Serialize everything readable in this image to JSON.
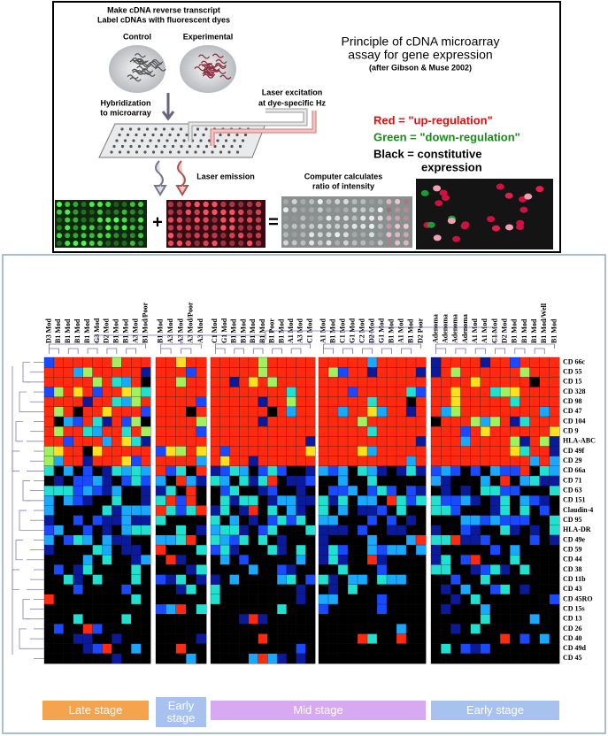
{
  "top_panel": {
    "step1_line1": "Make cDNA reverse transcript",
    "step1_line2": "Label cDNAs with fluorescent dyes",
    "control": "Control",
    "experimental": "Experimental",
    "title_line1": "Principle of cDNA microarray",
    "title_line2": "assay for gene expression",
    "citation": "(after Gibson & Muse 2002)",
    "hybridization_line1": "Hybridization",
    "hybridization_line2": "to microarray",
    "laser_line1": "Laser excitation",
    "laser_line2": "at dye-specific Hz",
    "legend_red": "Red = \"up-regulation\"",
    "legend_green": "Green = \"down-regulation\"",
    "legend_black_line1": "Black = constitutive",
    "legend_black_line2": "expression",
    "laser_emission": "Laser emission",
    "computer_line1": "Computer calculates",
    "computer_line2": "ratio of intensity",
    "plus": "+",
    "equals": "="
  },
  "heatmap": {
    "groups": [
      {
        "columns": [
          "D3 Mod",
          "B1 Mod",
          "B1 Mod",
          "B1 Mod",
          "B1 Mod",
          "G3 Mod",
          "D2 Mod",
          "B1 Mod",
          "B1 Mod",
          "A3 Mod",
          "B1 Mod/Poor"
        ]
      },
      {
        "columns": [
          "B1 Mod",
          "A3 Mod",
          "A3 Mod",
          "A3 Mod/Poor",
          "A3 Mod"
        ]
      },
      {
        "columns": [
          "C1 Mod",
          "G1 Mod",
          "B1 Mod",
          "B1 Mod",
          "B1 Mod",
          "B1 Mod",
          "B1 Poor",
          "B1 Mod",
          "A1 Mod",
          "A3 Mod",
          "C1 Mod"
        ]
      },
      {
        "columns": [
          "A1 Mod",
          "B1 Mod",
          "C1 Mod",
          "G1 Mod",
          "C2 Mod",
          "D2 Mod",
          "G1 Mod",
          "B1 Mod",
          "A1 Mod",
          "B1 Mod",
          "D2 Poor"
        ]
      },
      {
        "columns": [
          "Adenoma",
          "Adenoma",
          "Adenoma",
          "Adenoma",
          "A1 Mod",
          "A1 Mod",
          "C1 Mod",
          "D2 Mod",
          "B1 Mod",
          "B1 Mod",
          "B1 Mod",
          "B1 Mod/Well",
          "B1 Mod"
        ]
      }
    ],
    "rows": [
      "CD 66c",
      "CD 55",
      "CD 15",
      "CD 328",
      "CD 98",
      "CD 47",
      "CD 104",
      "CD 9",
      "HLA-ABC",
      "CD 49f",
      "CD 29",
      "CD 66a",
      "CD 71",
      "CD 63",
      "CD 151",
      "Claudin-4",
      "CD 95",
      "HLA-DR",
      "CD 49e",
      "CD 59",
      "CD 44",
      "CD 38",
      "CD 11b",
      "CD 43",
      "CD 45RO",
      "CD 15s",
      "CD 13",
      "CD 26",
      "CD 40",
      "CD 49d",
      "CD 45"
    ],
    "stages": [
      "Late stage",
      "Early stage",
      "Mid stage",
      "Early stage"
    ]
  }
}
